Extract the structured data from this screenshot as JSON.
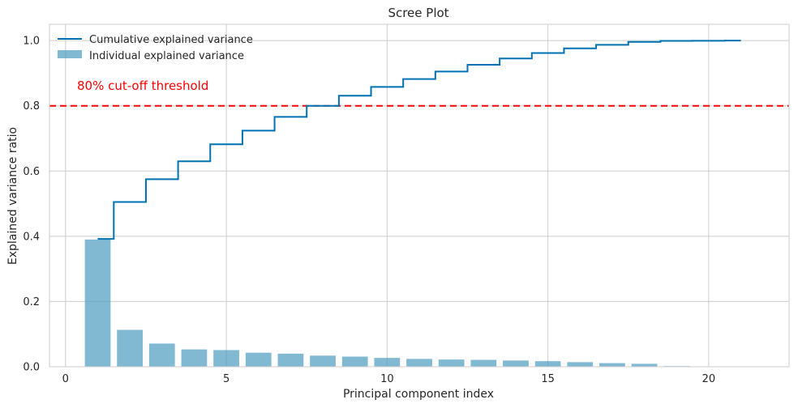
{
  "chart_data": {
    "type": "bar",
    "title": "Scree Plot",
    "xlabel": "Principal component index",
    "ylabel": "Explained variance ratio",
    "xlim": [
      -0.5,
      22.5
    ],
    "ylim": [
      0,
      1.05
    ],
    "xticks": [
      0,
      5,
      10,
      15,
      20
    ],
    "yticks": [
      0.0,
      0.2,
      0.4,
      0.6,
      0.8,
      1.0
    ],
    "grid": true,
    "legend_position": "top-left",
    "series": [
      {
        "name": "Individual explained variance",
        "kind": "bar",
        "color": "#4c9bc0",
        "x": [
          1,
          2,
          3,
          4,
          5,
          6,
          7,
          8,
          9,
          10,
          11,
          12,
          13,
          14,
          15,
          16,
          17,
          18,
          19,
          20,
          21
        ],
        "values": [
          0.39,
          0.113,
          0.071,
          0.053,
          0.051,
          0.043,
          0.04,
          0.034,
          0.031,
          0.027,
          0.024,
          0.022,
          0.021,
          0.019,
          0.017,
          0.014,
          0.011,
          0.009,
          0.002,
          0.0005,
          0.0002
        ]
      },
      {
        "name": "Cumulative explained variance",
        "kind": "step",
        "color": "#0072b2",
        "x": [
          1,
          2,
          3,
          4,
          5,
          6,
          7,
          8,
          9,
          10,
          11,
          12,
          13,
          14,
          15,
          16,
          17,
          18,
          19,
          20,
          21
        ],
        "values": [
          0.392,
          0.505,
          0.575,
          0.63,
          0.682,
          0.724,
          0.766,
          0.8,
          0.831,
          0.858,
          0.882,
          0.905,
          0.926,
          0.945,
          0.962,
          0.976,
          0.987,
          0.996,
          0.999,
          0.9995,
          1.0
        ]
      }
    ],
    "threshold": {
      "value": 0.8,
      "color": "#ff0000",
      "label": "80% cut-off threshold"
    }
  }
}
